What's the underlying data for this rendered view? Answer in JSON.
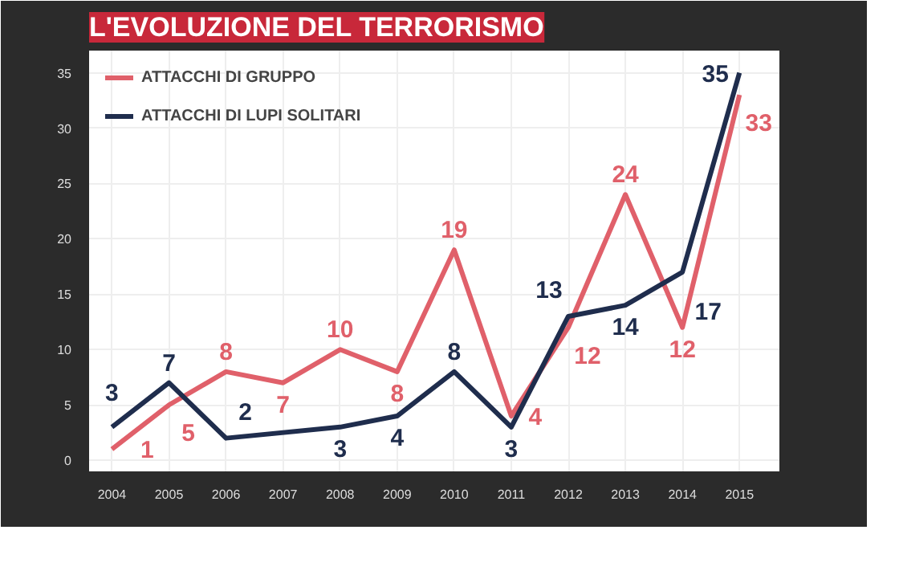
{
  "chart_data": {
    "type": "line",
    "title": "L'EVOLUZIONE DEL TERRORISMO",
    "x": [
      2004,
      2005,
      2006,
      2007,
      2008,
      2009,
      2010,
      2011,
      2012,
      2013,
      2014,
      2015
    ],
    "xlim": [
      2003.6,
      2015.7
    ],
    "xticks": [
      2004,
      2005,
      2006,
      2007,
      2008,
      2009,
      2010,
      2011,
      2012,
      2013,
      2014,
      2015
    ],
    "ylim": [
      -1,
      37
    ],
    "yticks": [
      0,
      5,
      10,
      15,
      20,
      25,
      30,
      35
    ],
    "series": [
      {
        "name": "ATTACCHI DI GRUPPO",
        "color": "#e0606a",
        "values": [
          1,
          5,
          8,
          7,
          10,
          8,
          19,
          4,
          12,
          24,
          12,
          33
        ]
      },
      {
        "name": "ATTACCHI DI LUPI SOLITARI",
        "color": "#1f2d4d",
        "x": [
          2004,
          2005,
          2006,
          2008,
          2009,
          2010,
          2011,
          2012,
          2013,
          2014,
          2015
        ],
        "values": [
          3,
          7,
          2,
          3,
          4,
          8,
          3,
          13,
          14,
          17,
          35
        ]
      }
    ],
    "data_labels": true,
    "grid": true,
    "legend": "top left",
    "line_style": "solid"
  }
}
